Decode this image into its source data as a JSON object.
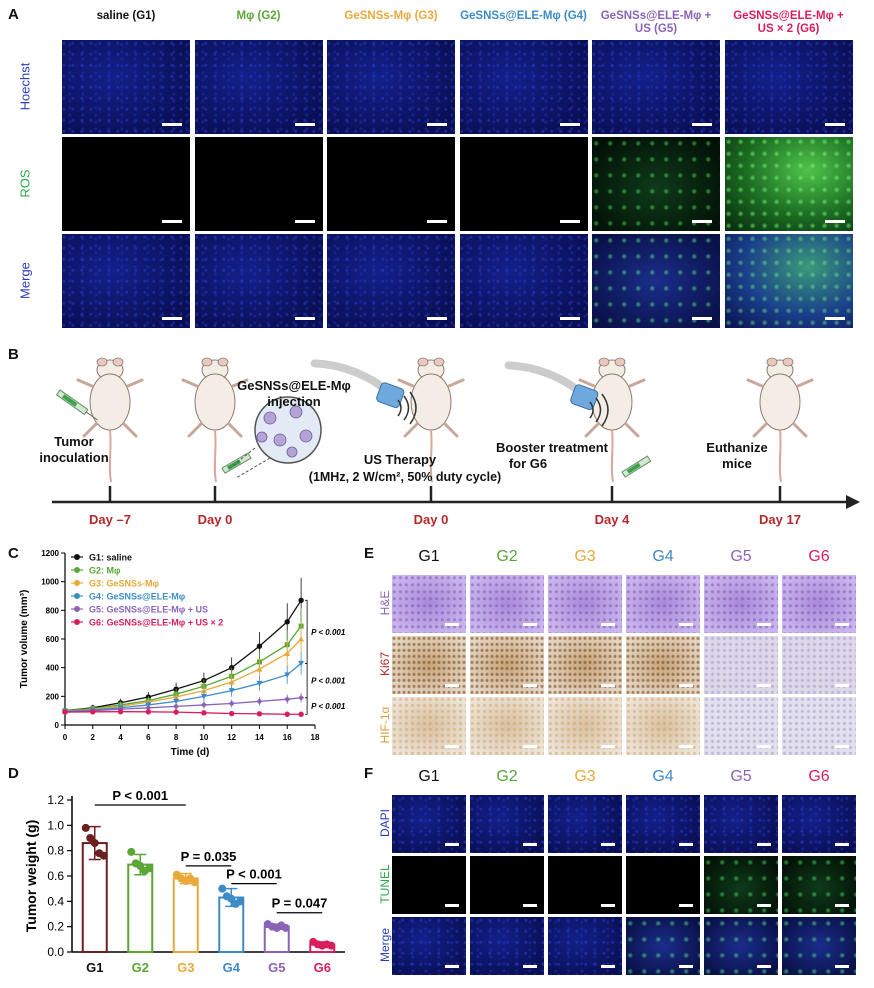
{
  "panelA": {
    "label": "A",
    "columns": [
      {
        "text": "saline (G1)",
        "color": "#111111"
      },
      {
        "text": "Mφ (G2)",
        "color": "#5aa636"
      },
      {
        "text": "GeSNSs-Mφ (G3)",
        "color": "#e8a93a"
      },
      {
        "text": "GeSNSs@ELE-Mφ (G4)",
        "color": "#3c8bc6"
      },
      {
        "text": "GeSNSs@ELE-Mφ + US (G5)",
        "color": "#8a63b8"
      },
      {
        "text": "GeSNSs@ELE-Mφ + US × 2 (G6)",
        "color": "#d81e5b"
      }
    ],
    "rows": [
      {
        "text": "Hoechst",
        "color": "#2b3bbf"
      },
      {
        "text": "ROS",
        "color": "#2fa84a"
      },
      {
        "text": "Merge",
        "color": "#2b3bbf"
      }
    ]
  },
  "panelB": {
    "label": "B",
    "steps": {
      "tumor": "Tumor inoculation",
      "injection": "GeSNSs@ELE-Mφ injection",
      "us_therapy": "US Therapy",
      "us_params": "(1MHz, 2 W/cm², 50% duty cycle)",
      "booster": "Booster treatment for G6",
      "euthanize": "Euthanize mice"
    },
    "days": [
      "Day –7",
      "Day 0",
      "Day 0",
      "Day 4",
      "Day 17"
    ]
  },
  "panelC": {
    "label": "C",
    "chart_data": {
      "type": "line",
      "xlabel": "Time (d)",
      "ylabel": "Tumor volume (mm³)",
      "xlim": [
        0,
        18
      ],
      "ylim": [
        0,
        1200
      ],
      "xticks": [
        0,
        2,
        4,
        6,
        8,
        10,
        12,
        14,
        16,
        18
      ],
      "yticks": [
        0,
        200,
        400,
        600,
        800,
        1000,
        1200
      ],
      "x": [
        0,
        2,
        4,
        6,
        8,
        10,
        12,
        14,
        16,
        17
      ],
      "series": [
        {
          "name": "G1: saline",
          "color": "#111111",
          "marker": "circle",
          "values": [
            100,
            120,
            155,
            195,
            250,
            310,
            400,
            550,
            720,
            870
          ]
        },
        {
          "name": "G2: Mφ",
          "color": "#5aa636",
          "marker": "square",
          "values": [
            100,
            115,
            140,
            170,
            215,
            270,
            340,
            440,
            560,
            690
          ]
        },
        {
          "name": "G3: GeSNSs-Mφ",
          "color": "#e8a93a",
          "marker": "triangle",
          "values": [
            95,
            110,
            130,
            160,
            195,
            240,
            300,
            390,
            500,
            600
          ]
        },
        {
          "name": "G4: GeSNSs@ELE-Mφ",
          "color": "#3c8bc6",
          "marker": "triangle-down",
          "values": [
            95,
            105,
            120,
            140,
            165,
            200,
            240,
            290,
            350,
            430
          ]
        },
        {
          "name": "G5: GeSNSs@ELE-Mφ + US",
          "color": "#8a63b8",
          "marker": "diamond",
          "values": [
            90,
            100,
            110,
            120,
            130,
            140,
            150,
            165,
            180,
            190
          ]
        },
        {
          "name": "G6: GeSNSs@ELE-Mφ + US × 2",
          "color": "#d81e5b",
          "marker": "circle",
          "values": [
            90,
            92,
            93,
            92,
            90,
            85,
            80,
            78,
            75,
            75
          ]
        }
      ],
      "annotations": [
        "P < 0.001",
        "P < 0.001",
        "P < 0.001"
      ]
    }
  },
  "panelD": {
    "label": "D",
    "chart_data": {
      "type": "bar",
      "ylabel": "Tumor weight (g)",
      "ylim": [
        0,
        1.2
      ],
      "yticks": [
        0.0,
        0.2,
        0.4,
        0.6,
        0.8,
        1.0,
        1.2
      ],
      "categories": [
        "G1",
        "G2",
        "G3",
        "G4",
        "G5",
        "G6"
      ],
      "colors": [
        "#111111",
        "#5aa636",
        "#e8a93a",
        "#3c8bc6",
        "#8a63b8",
        "#d81e5b"
      ],
      "edge_colors": [
        "#6b1f1f",
        "#5aa636",
        "#e8a93a",
        "#3c8bc6",
        "#8a63b8",
        "#d81e5b"
      ],
      "values": [
        0.86,
        0.69,
        0.58,
        0.43,
        0.2,
        0.06
      ],
      "errors": [
        0.13,
        0.08,
        0.04,
        0.07,
        0.02,
        0.02
      ],
      "points": [
        [
          0.98,
          0.9,
          0.86,
          0.78,
          0.76
        ],
        [
          0.79,
          0.7,
          0.68,
          0.64,
          0.66
        ],
        [
          0.61,
          0.58,
          0.56,
          0.58,
          0.55
        ],
        [
          0.5,
          0.44,
          0.42,
          0.38,
          0.4
        ],
        [
          0.22,
          0.2,
          0.19,
          0.21,
          0.19
        ],
        [
          0.08,
          0.06,
          0.05,
          0.06,
          0.05
        ]
      ],
      "annotations": [
        "P < 0.001",
        "P = 0.035",
        "P < 0.001",
        "P = 0.047"
      ]
    }
  },
  "panelE": {
    "label": "E",
    "columns": [
      "G1",
      "G2",
      "G3",
      "G4",
      "G5",
      "G6"
    ],
    "column_colors": [
      "#111111",
      "#5aa636",
      "#e8a93a",
      "#3c8bc6",
      "#8a63b8",
      "#d81e5b"
    ],
    "rows": [
      {
        "text": "H&E",
        "color": "#8a63b8"
      },
      {
        "text": "Ki67",
        "color": "#b5282a"
      },
      {
        "text": "HIF-1α",
        "color": "#d9a13a"
      }
    ]
  },
  "panelF": {
    "label": "F",
    "columns": [
      "G1",
      "G2",
      "G3",
      "G4",
      "G5",
      "G6"
    ],
    "column_colors": [
      "#111111",
      "#5aa636",
      "#e8a93a",
      "#3c8bc6",
      "#8a63b8",
      "#d81e5b"
    ],
    "rows": [
      {
        "text": "DAPI",
        "color": "#2b3bbf"
      },
      {
        "text": "TUNEL",
        "color": "#2fa84a"
      },
      {
        "text": "Merge",
        "color": "#2b3bbf"
      }
    ]
  }
}
